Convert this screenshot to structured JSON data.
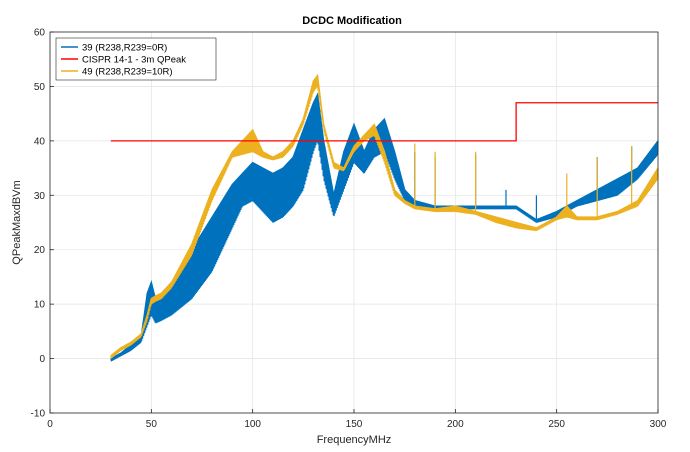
{
  "chart_data": {
    "type": "line",
    "title": "DCDC Modification",
    "xlabel": "FrequencyMHz",
    "ylabel": "QPeakMaxdBVm",
    "xlim": [
      0,
      300
    ],
    "ylim": [
      -10,
      60
    ],
    "x_ticks": [
      0,
      50,
      100,
      150,
      200,
      250,
      300
    ],
    "y_ticks": [
      -10,
      0,
      10,
      20,
      30,
      40,
      50,
      60
    ],
    "grid": true,
    "legend_position": "top-left",
    "series": [
      {
        "name": "39 (R238,R239=0R)",
        "color": "#0072BD",
        "style": "band",
        "x": [
          30,
          35,
          40,
          45,
          48,
          50,
          52,
          55,
          60,
          70,
          80,
          90,
          95,
          100,
          105,
          110,
          115,
          120,
          125,
          130,
          132,
          135,
          140,
          145,
          150,
          155,
          160,
          165,
          170,
          175,
          180,
          190,
          200,
          210,
          220,
          230,
          240,
          250,
          260,
          270,
          280,
          290,
          300
        ],
        "upper": [
          0,
          1,
          2.5,
          4,
          12,
          14,
          11,
          12,
          14,
          20,
          26,
          32,
          34,
          36,
          35,
          34,
          35,
          37,
          42,
          47,
          48.5,
          40,
          30,
          38,
          43,
          38,
          42,
          44,
          38,
          31,
          29,
          28,
          28,
          28,
          28,
          28,
          25.5,
          27,
          29,
          31,
          33,
          35,
          40
        ],
        "lower": [
          -0.5,
          0.5,
          1.5,
          3,
          6,
          8,
          6.5,
          7,
          8,
          11,
          16,
          24,
          28,
          29,
          27,
          25,
          26,
          28,
          31,
          38,
          40,
          33,
          26,
          31,
          36,
          34,
          37,
          38,
          33,
          29,
          28,
          27.5,
          27.5,
          27.5,
          27.5,
          27.5,
          25,
          26,
          28,
          29,
          30,
          33,
          37.5
        ]
      },
      {
        "name": "CISPR 14-1 - 3m QPeak",
        "color": "#FF0000",
        "style": "line",
        "x": [
          30,
          230,
          230,
          300
        ],
        "y": [
          40,
          40,
          47,
          47
        ]
      },
      {
        "name": "49 (R238,R239=10R)",
        "color": "#EDB120",
        "style": "band",
        "x": [
          30,
          35,
          40,
          45,
          48,
          50,
          52,
          55,
          60,
          70,
          80,
          90,
          95,
          100,
          105,
          110,
          115,
          120,
          125,
          130,
          132,
          135,
          140,
          145,
          150,
          155,
          160,
          165,
          170,
          175,
          180,
          190,
          200,
          210,
          220,
          230,
          240,
          250,
          255,
          260,
          270,
          280,
          290,
          300
        ],
        "upper": [
          0.5,
          2,
          3,
          4.5,
          8,
          11,
          11.5,
          12,
          14,
          21,
          31,
          38,
          40,
          42,
          38,
          37,
          38,
          40,
          44,
          51,
          52,
          43,
          36,
          35,
          39,
          41,
          43,
          38,
          31,
          29,
          28,
          27.5,
          28,
          27,
          26,
          25,
          24,
          26,
          28,
          26,
          26,
          27,
          29,
          35
        ],
        "lower": [
          0,
          1.5,
          2.5,
          4,
          7,
          10,
          10.5,
          11,
          13,
          19,
          29,
          37,
          37.5,
          38,
          37,
          36.5,
          37,
          39,
          43,
          49,
          50,
          42,
          35,
          34.5,
          38,
          40,
          41,
          36,
          30,
          28.5,
          27.5,
          27,
          27,
          26.5,
          25,
          24,
          23.5,
          25.5,
          26,
          25.5,
          25.5,
          26.5,
          28,
          33
        ]
      }
    ],
    "spikes": [
      {
        "series": 0,
        "x": 180,
        "y": 38
      },
      {
        "series": 0,
        "x": 190,
        "y": 37
      },
      {
        "series": 0,
        "x": 210,
        "y": 37.5
      },
      {
        "series": 0,
        "x": 225,
        "y": 31
      },
      {
        "series": 0,
        "x": 240,
        "y": 30
      },
      {
        "series": 0,
        "x": 270,
        "y": 37
      },
      {
        "series": 0,
        "x": 287,
        "y": 39
      },
      {
        "series": 2,
        "x": 180,
        "y": 39.5
      },
      {
        "series": 2,
        "x": 190,
        "y": 38
      },
      {
        "series": 2,
        "x": 210,
        "y": 38
      },
      {
        "series": 2,
        "x": 255,
        "y": 34
      },
      {
        "series": 2,
        "x": 270,
        "y": 37
      },
      {
        "series": 2,
        "x": 287,
        "y": 39
      }
    ]
  }
}
